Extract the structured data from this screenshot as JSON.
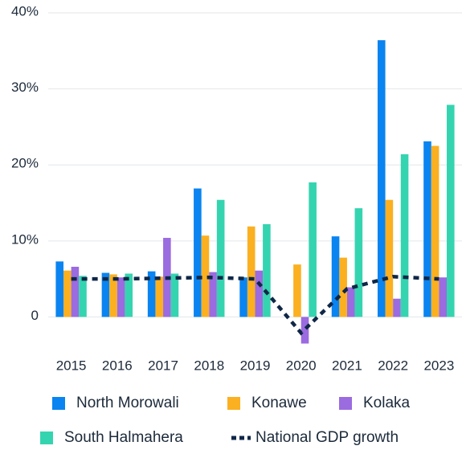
{
  "chart_data": {
    "type": "bar",
    "categories": [
      "2015",
      "2016",
      "2017",
      "2018",
      "2019",
      "2020",
      "2021",
      "2022",
      "2023"
    ],
    "series": [
      {
        "name": "North Morowali",
        "color": "#0a84f0",
        "values": [
          7.3,
          5.8,
          6.0,
          16.9,
          5.2,
          null,
          10.6,
          36.4,
          23.1
        ]
      },
      {
        "name": "Konawe",
        "color": "#fbb021",
        "values": [
          6.1,
          5.6,
          5.3,
          10.7,
          11.9,
          6.9,
          7.8,
          15.4,
          22.5
        ]
      },
      {
        "name": "Kolaka",
        "color": "#9b6be0",
        "values": [
          6.6,
          5.2,
          10.4,
          5.9,
          6.1,
          -3.5,
          3.9,
          2.4,
          5.2
        ]
      },
      {
        "name": "South Halmahera",
        "color": "#35d4b0",
        "values": [
          5.4,
          5.7,
          5.7,
          15.4,
          12.2,
          17.7,
          14.3,
          21.4,
          27.9
        ]
      },
      {
        "name": "National GDP growth",
        "color": "#0f2747",
        "type": "line",
        "values": [
          5.0,
          5.0,
          5.1,
          5.2,
          5.0,
          -2.1,
          3.7,
          5.3,
          5.0
        ]
      }
    ],
    "ylim": [
      -4.5,
      40
    ],
    "yticks": [
      0,
      {
        "value": 10,
        "label": "10%"
      },
      {
        "value": 20,
        "label": "20%"
      },
      {
        "value": 30,
        "label": "30%"
      },
      {
        "value": 40,
        "label": "40%"
      }
    ],
    "grid": true
  }
}
